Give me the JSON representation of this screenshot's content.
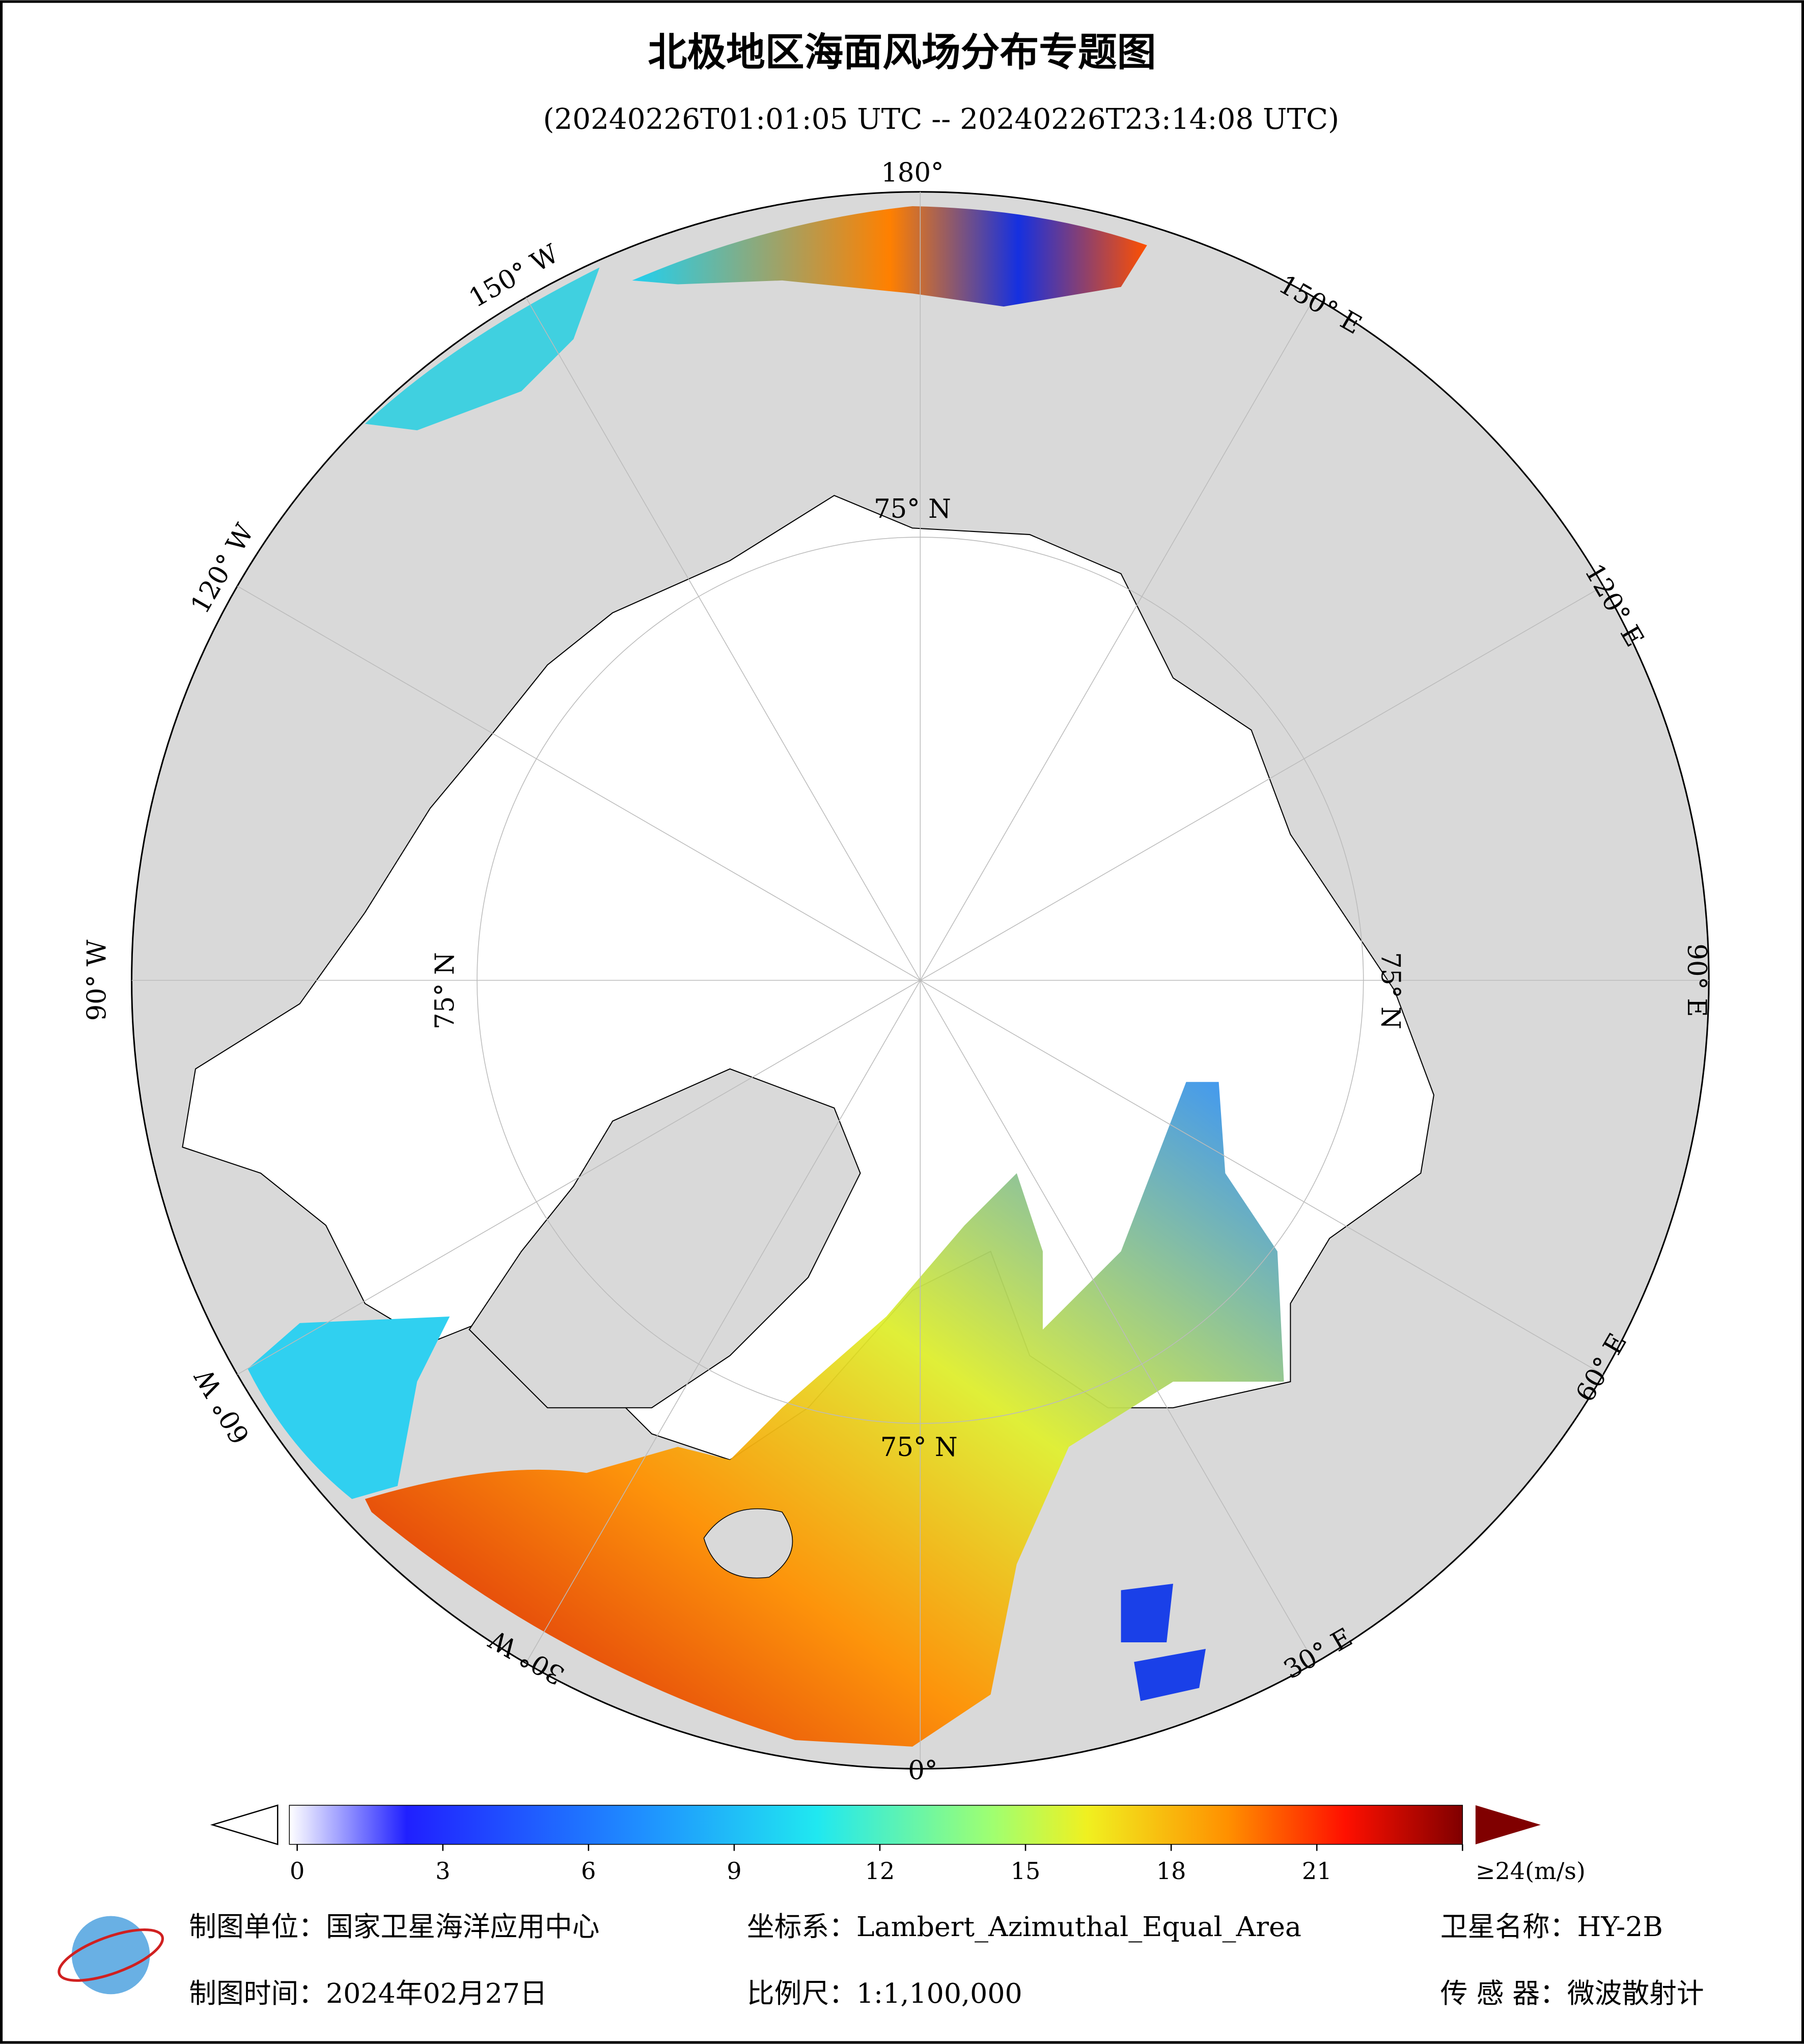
{
  "header": {
    "title": "北极地区海面风场分布专题图",
    "subtitle": "(20240226T01:01:05 UTC -- 20240226T23:14:08 UTC)"
  },
  "map": {
    "lon_labels": [
      "180°",
      "150° E",
      "120° E",
      "90° E",
      "60° E",
      "30° E",
      "0°",
      "30° W",
      "60° W",
      "90° W",
      "120° W",
      "150° W"
    ],
    "lat_labels": [
      "75° N",
      "75° N",
      "75° N",
      "75° N"
    ]
  },
  "colorbar": {
    "range": [
      0,
      24
    ],
    "ticks": [
      0,
      3,
      6,
      9,
      12,
      15,
      18,
      21,
      {
        "value": 24,
        "label": "≥24(m/s)"
      }
    ]
  },
  "footer": {
    "unit": "制图单位：国家卫星海洋应用中心",
    "crs": "坐标系：Lambert_Azimuthal_Equal_Area",
    "satellite": "卫星名称：HY-2B",
    "date": "制图时间：2024年02月27日",
    "scale": "比例尺：1:1,100,000",
    "sensor": "传 感 器：微波散射计"
  }
}
